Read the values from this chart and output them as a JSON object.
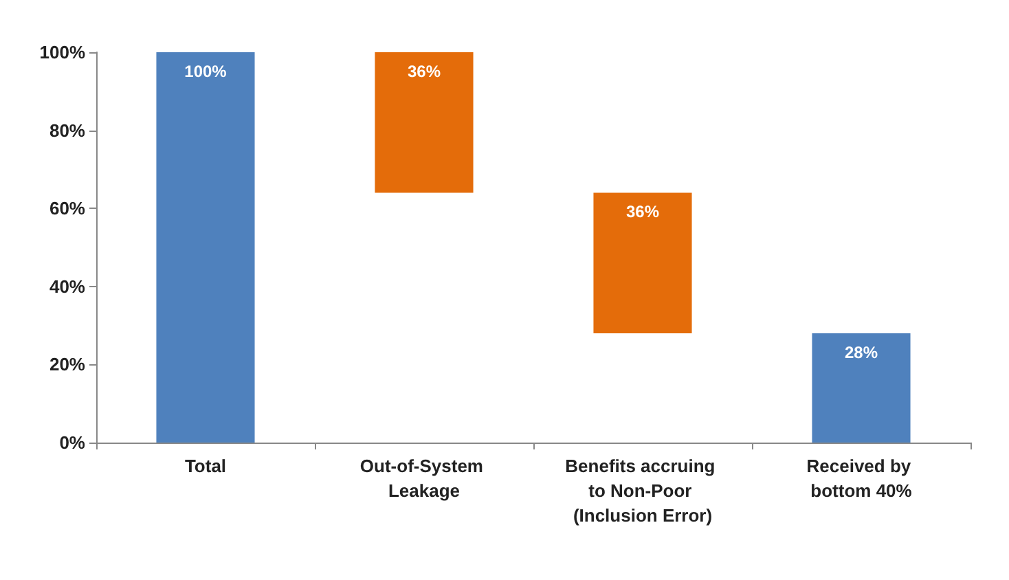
{
  "chart_data": {
    "type": "bar",
    "categories": [
      "Total",
      "Out-of-System Leakage",
      "Benefits accruing to Non-Poor (Inclusion Error)",
      "Received by bottom 40%"
    ],
    "values": [
      100,
      36,
      36,
      28
    ],
    "base": [
      0,
      64,
      28,
      0
    ],
    "colors": [
      "#4f81bd",
      "#e46c0a",
      "#e46c0a",
      "#4f81bd"
    ],
    "value_labels": [
      "100%",
      "36%",
      "36%",
      "28%"
    ],
    "ylim": [
      0,
      100
    ],
    "yticks": [
      {
        "value": 0,
        "label": "0%"
      },
      {
        "value": 20,
        "label": "20%"
      },
      {
        "value": 40,
        "label": "40%"
      },
      {
        "value": 60,
        "label": "60%"
      },
      {
        "value": 80,
        "label": "80%"
      },
      {
        "value": 100,
        "label": "100%"
      }
    ],
    "grid": false
  }
}
